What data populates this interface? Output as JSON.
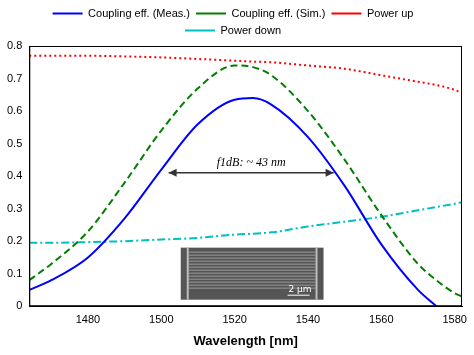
{
  "chart_data": {
    "type": "line",
    "x_label": "Wavelength [nm]",
    "x": [
      1464,
      1470,
      1480,
      1490,
      1500,
      1510,
      1520,
      1525,
      1530,
      1540,
      1550,
      1560,
      1570,
      1575,
      1580,
      1582
    ],
    "series": [
      {
        "name": "Coupling eff. (Meas.)",
        "color": "#0000ff",
        "line_style": "solid",
        "values": [
          0.05,
          0.08,
          0.15,
          0.27,
          0.42,
          0.56,
          0.635,
          0.64,
          0.62,
          0.52,
          0.37,
          0.19,
          0.05,
          0.0,
          null,
          null
        ]
      },
      {
        "name": "Coupling eff. (Sim.)",
        "color": "#007f00",
        "line_style": "dashed",
        "values": [
          0.08,
          0.13,
          0.23,
          0.38,
          0.54,
          0.67,
          0.74,
          0.735,
          0.71,
          0.6,
          0.45,
          0.28,
          0.13,
          0.08,
          0.04,
          0.03
        ]
      },
      {
        "name": "Power up",
        "color": "#ff0000",
        "line_style": "dotted",
        "values": [
          0.77,
          0.77,
          0.77,
          0.768,
          0.765,
          0.76,
          0.755,
          0.752,
          0.75,
          0.74,
          0.73,
          0.71,
          0.69,
          0.68,
          0.665,
          0.655
        ]
      },
      {
        "name": "Power down",
        "color": "#00bfbf",
        "line_style": "dashdot",
        "values": [
          0.195,
          0.195,
          0.197,
          0.2,
          0.205,
          0.21,
          0.22,
          0.223,
          0.227,
          0.245,
          0.26,
          0.275,
          0.295,
          0.305,
          0.315,
          0.32
        ]
      }
    ],
    "xlim": [
      1464,
      1582
    ],
    "xticks": [
      1480,
      1500,
      1520,
      1540,
      1560,
      1580
    ],
    "ylim": [
      0,
      0.8
    ],
    "yticks": [
      0,
      0.1,
      0.2,
      0.3,
      0.4,
      0.5,
      0.6,
      0.7,
      0.8
    ],
    "grid": false,
    "legend": "top",
    "annotations": [
      {
        "text": "f1dB: ~ 43 nm",
        "x_from": 1502,
        "x_to": 1547,
        "y": 0.41
      },
      {
        "text": "2 μm"
      }
    ]
  }
}
